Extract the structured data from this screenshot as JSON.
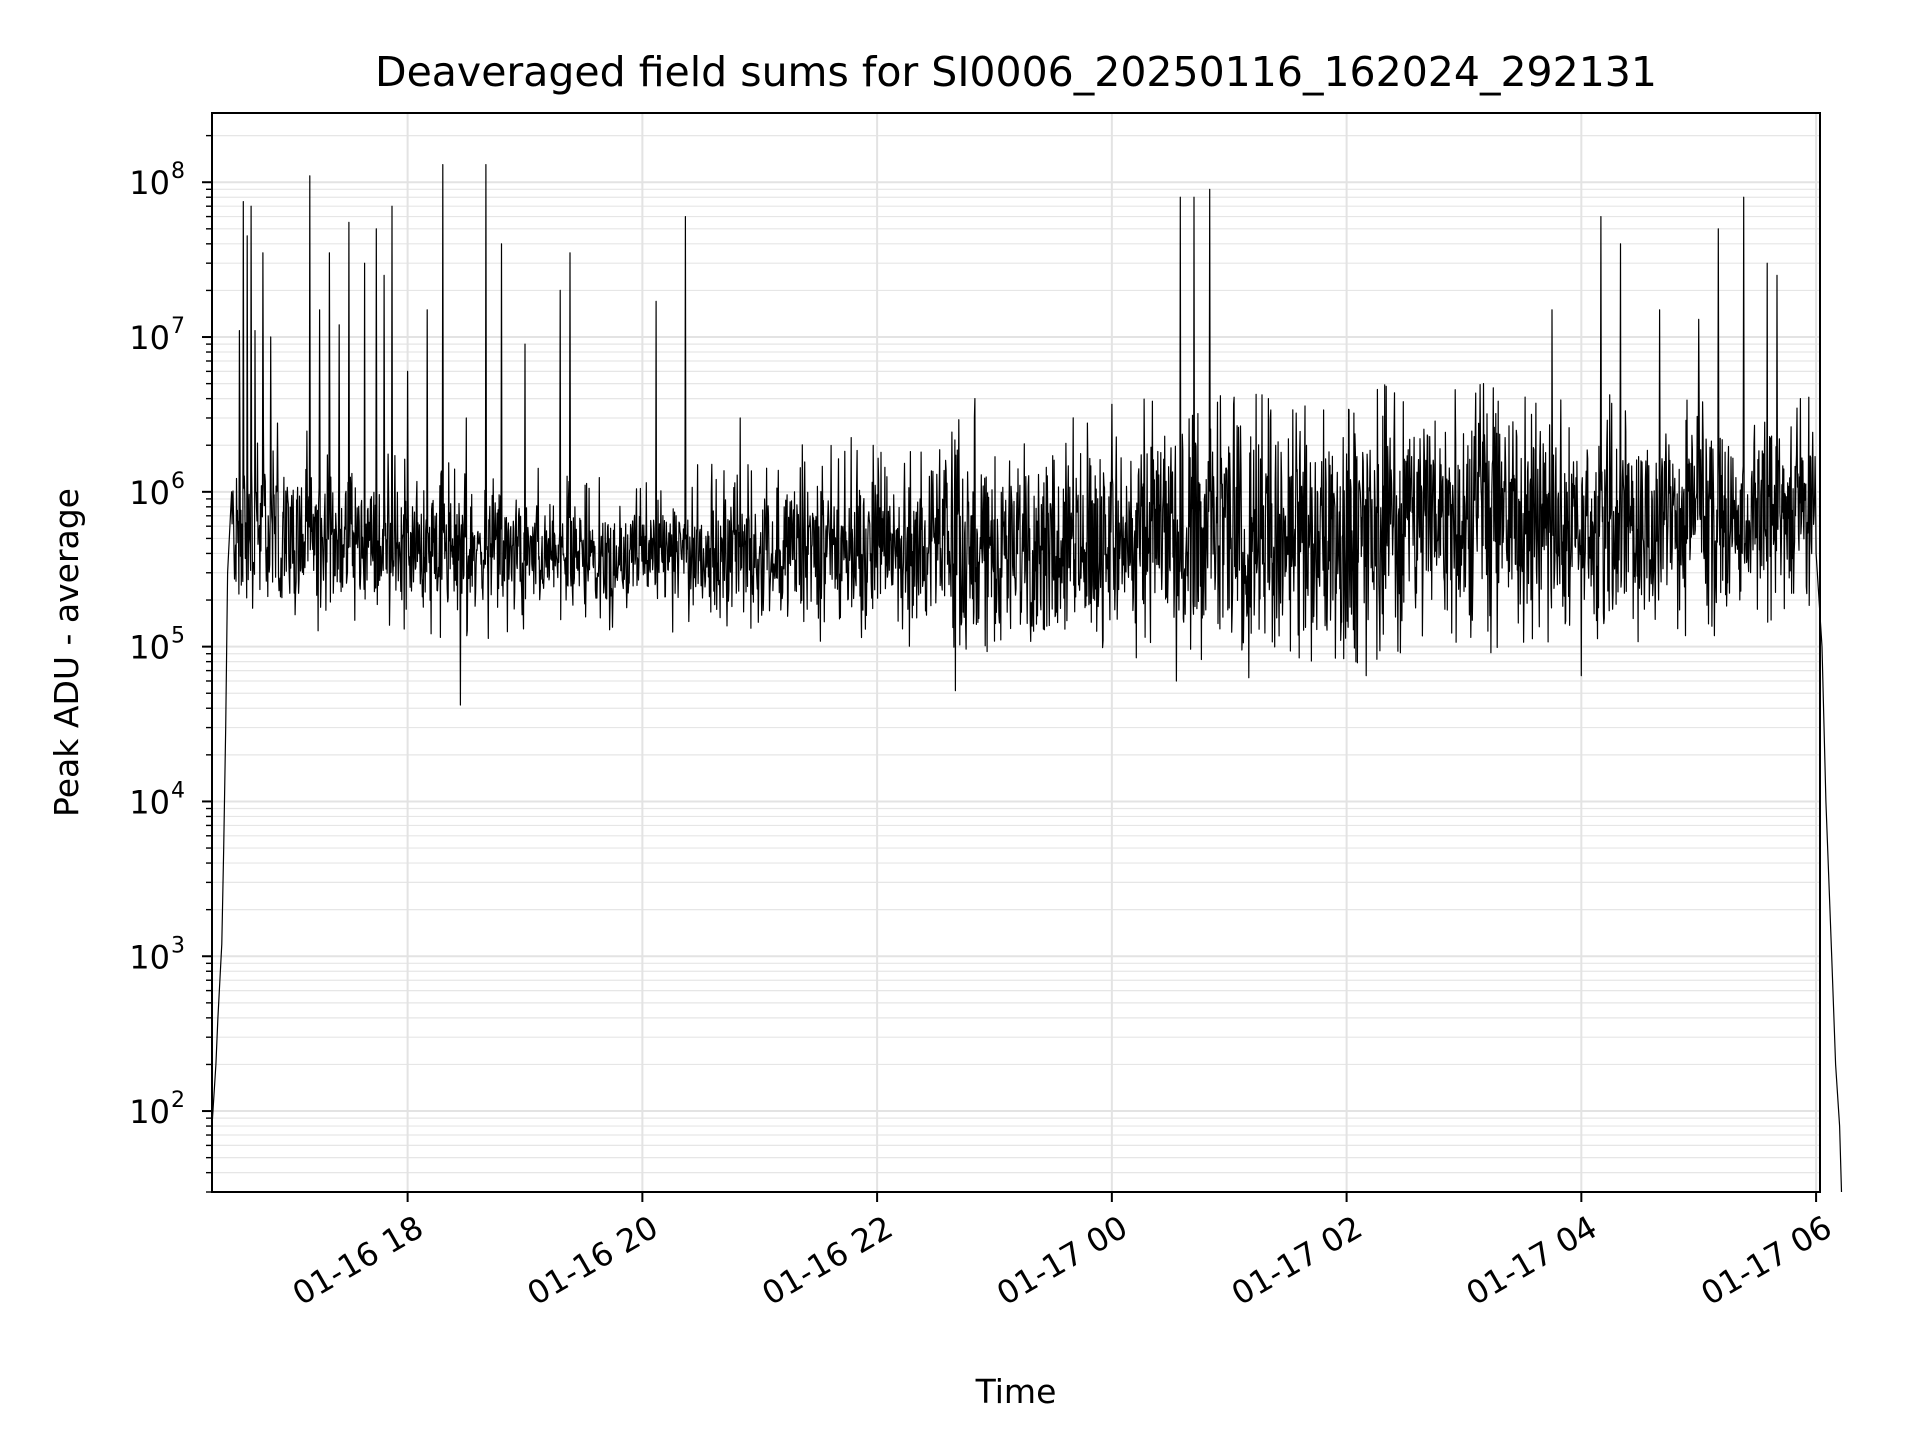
{
  "chart_data": {
    "type": "line",
    "title": "Deaveraged field sums for SI0006_20250116_162024_292131",
    "xlabel": "Time",
    "ylabel": "Peak ADU - average",
    "yscale": "log",
    "grid": true,
    "grid_minor": true,
    "xlim": [
      "2025-01-16 16:20",
      "2025-01-17 06:02"
    ],
    "ylim": [
      30,
      280000000
    ],
    "x_tick_labels": [
      "01-16 18",
      "01-16 20",
      "01-16 22",
      "01-17 00",
      "01-17 02",
      "01-17 04",
      "01-17 06"
    ],
    "x_ticks": [
      "2025-01-16 18:00",
      "2025-01-16 20:00",
      "2025-01-16 22:00",
      "2025-01-17 00:00",
      "2025-01-17 02:00",
      "2025-01-17 04:00",
      "2025-01-17 06:00"
    ],
    "y_ticks": [
      {
        "base": "10",
        "exp": "2",
        "value": 100
      },
      {
        "base": "10",
        "exp": "3",
        "value": 1000
      },
      {
        "base": "10",
        "exp": "4",
        "value": 10000
      },
      {
        "base": "10",
        "exp": "5",
        "value": 100000
      },
      {
        "base": "10",
        "exp": "6",
        "value": 1000000
      },
      {
        "base": "10",
        "exp": "7",
        "value": 10000000
      },
      {
        "base": "10",
        "exp": "8",
        "value": 100000000
      }
    ],
    "series": [
      {
        "color": "#000000",
        "sampling": "approximate envelope (minutes since 2025-01-16 16:20); dense noise band between low and high with listed spikes",
        "ramp_up": [
          [
            0,
            80
          ],
          [
            2,
            200
          ],
          [
            3,
            400
          ],
          [
            5,
            1200
          ],
          [
            6,
            5000
          ],
          [
            7,
            30000
          ],
          [
            8,
            300000
          ],
          [
            10,
            1000000
          ]
        ],
        "ramp_down": [
          [
            820,
            400000
          ],
          [
            823,
            100000
          ],
          [
            825,
            10000
          ],
          [
            828,
            1000
          ],
          [
            830,
            200
          ],
          [
            832,
            80
          ],
          [
            833,
            30
          ]
        ],
        "band": [
          {
            "t": 12,
            "low": 250000,
            "mid": 550000,
            "high": 2200000
          },
          {
            "t": 60,
            "low": 200000,
            "mid": 500000,
            "high": 1200000
          },
          {
            "t": 120,
            "low": 180000,
            "mid": 400000,
            "high": 1000000
          },
          {
            "t": 220,
            "low": 200000,
            "mid": 380000,
            "high": 700000
          },
          {
            "t": 300,
            "low": 180000,
            "mid": 420000,
            "high": 1200000
          },
          {
            "t": 400,
            "low": 150000,
            "mid": 450000,
            "high": 1800000
          },
          {
            "t": 500,
            "low": 130000,
            "mid": 550000,
            "high": 2500000
          },
          {
            "t": 580,
            "low": 120000,
            "mid": 500000,
            "high": 2200000
          },
          {
            "t": 620,
            "low": 150000,
            "mid": 800000,
            "high": 3500000
          },
          {
            "t": 700,
            "low": 150000,
            "mid": 600000,
            "high": 2500000
          },
          {
            "t": 780,
            "low": 200000,
            "mid": 650000,
            "high": 2000000
          },
          {
            "t": 815,
            "low": 250000,
            "mid": 700000,
            "high": 2500000
          }
        ],
        "spikes": [
          [
            14,
            11000000
          ],
          [
            16,
            75000000
          ],
          [
            18,
            45000000
          ],
          [
            20,
            70000000
          ],
          [
            22,
            11000000
          ],
          [
            26,
            35000000
          ],
          [
            30,
            10000000
          ],
          [
            50,
            110000000
          ],
          [
            55,
            15000000
          ],
          [
            60,
            35000000
          ],
          [
            65,
            12000000
          ],
          [
            70,
            55000000
          ],
          [
            78,
            30000000
          ],
          [
            84,
            50000000
          ],
          [
            88,
            25000000
          ],
          [
            92,
            70000000
          ],
          [
            100,
            6000000
          ],
          [
            110,
            15000000
          ],
          [
            118,
            130000000
          ],
          [
            130,
            3000000
          ],
          [
            140,
            130000000
          ],
          [
            148,
            40000000
          ],
          [
            160,
            9000000
          ],
          [
            178,
            20000000
          ],
          [
            183,
            35000000
          ],
          [
            227,
            17000000
          ],
          [
            242,
            60000000
          ],
          [
            270,
            3000000
          ],
          [
            390,
            4000000
          ],
          [
            495,
            80000000
          ],
          [
            502,
            80000000
          ],
          [
            510,
            90000000
          ],
          [
            540,
            4000000
          ],
          [
            650,
            5000000
          ],
          [
            685,
            15000000
          ],
          [
            710,
            60000000
          ],
          [
            720,
            40000000
          ],
          [
            740,
            15000000
          ],
          [
            760,
            13000000
          ],
          [
            770,
            50000000
          ],
          [
            783,
            80000000
          ],
          [
            795,
            30000000
          ],
          [
            800,
            25000000
          ],
          [
            812,
            4000000
          ]
        ],
        "dips": [
          [
            127,
            42000
          ],
          [
            380,
            52000
          ],
          [
            493,
            60000
          ],
          [
            530,
            63000
          ],
          [
            590,
            65000
          ],
          [
            700,
            65000
          ],
          [
            820,
            45000
          ]
        ]
      }
    ]
  }
}
